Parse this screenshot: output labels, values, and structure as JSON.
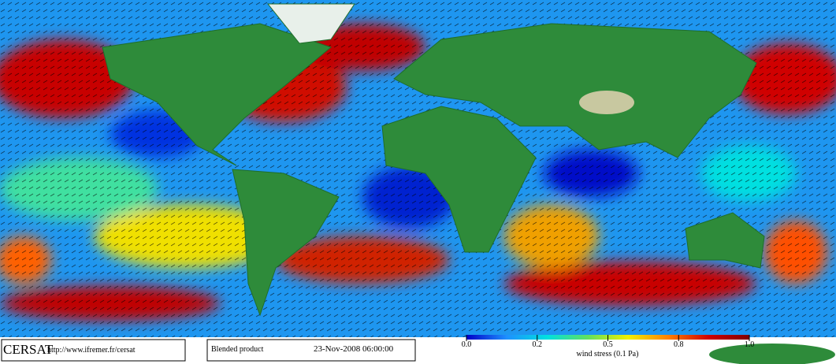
{
  "footer": {
    "logo": "CERSAT",
    "url": "http://www.ifremer.fr/cersat",
    "product": "Blended product",
    "date": "23-Nov-2008 06:00:00"
  },
  "colorbar": {
    "label": "wind stress (0.1 Pa)",
    "lim": [
      0,
      1
    ],
    "ticks": [
      {
        "value": 0,
        "label": "0.0"
      },
      {
        "value": 0.25,
        "label": "0.2"
      },
      {
        "value": 0.5,
        "label": "0.5"
      },
      {
        "value": 0.75,
        "label": "0.8"
      },
      {
        "value": 1,
        "label": "1.0"
      }
    ],
    "colors": [
      "#0000c8",
      "#1e90ff",
      "#00e0e0",
      "#60e060",
      "#f0f000",
      "#ff8000",
      "#d00000",
      "#800000"
    ]
  }
}
